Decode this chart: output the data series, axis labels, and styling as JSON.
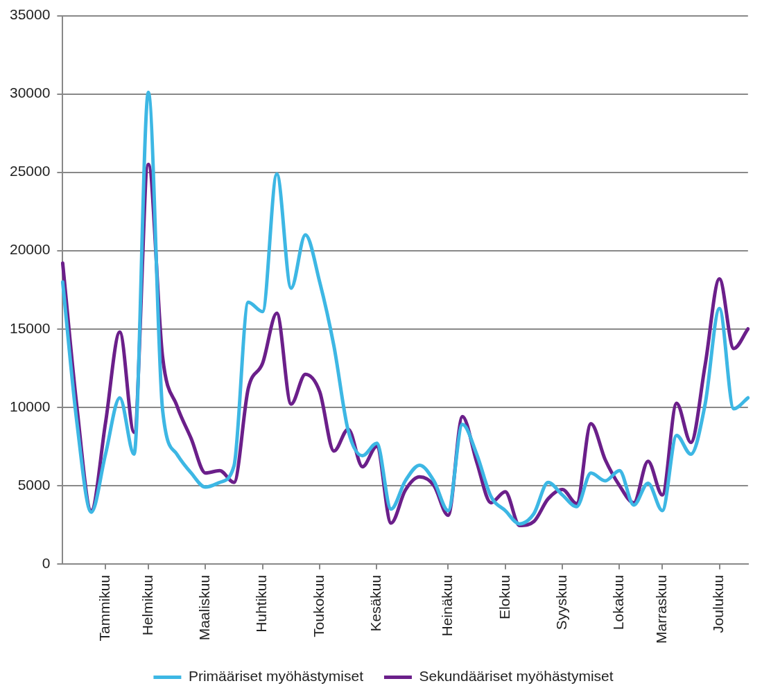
{
  "chart_data": {
    "type": "line",
    "ylim": [
      0,
      35000
    ],
    "yticks": [
      0,
      5000,
      10000,
      15000,
      20000,
      25000,
      30000,
      35000
    ],
    "categories": [
      null,
      null,
      null,
      "Tammikuu",
      null,
      null,
      "Helmikuu",
      null,
      null,
      null,
      "Maaliskuu",
      null,
      null,
      null,
      "Huhtikuu",
      null,
      null,
      null,
      "Toukokuu",
      null,
      null,
      null,
      "Kesäkuu",
      null,
      null,
      null,
      null,
      "Heinäkuu",
      null,
      null,
      null,
      "Elokuu",
      null,
      null,
      null,
      "Syyskuu",
      null,
      null,
      null,
      "Lokakuu",
      null,
      null,
      "Marraskuu",
      null,
      null,
      null,
      "Joulukuu",
      null,
      null
    ],
    "grid": "y",
    "legend": "bottom",
    "line_style": "solid",
    "series": [
      {
        "name": "Primääriset myöhästymiset",
        "color": "#3db7e4",
        "values": [
          18000,
          9000,
          3300,
          7000,
          10600,
          7000,
          30100,
          9800,
          7000,
          5800,
          4900,
          5200,
          6250,
          16700,
          16100,
          24900,
          17600,
          21000,
          18000,
          13900,
          8500,
          6900,
          7700,
          3500,
          5300,
          6300,
          5300,
          3400,
          8900,
          7000,
          4300,
          3400,
          2550,
          3200,
          5200,
          4400,
          3650,
          5800,
          5300,
          5950,
          3750,
          5150,
          3400,
          8200,
          7000,
          10200,
          16300,
          9900,
          10600
        ]
      },
      {
        "name": "Sekundääriset myöhästymiset",
        "color": "#6b1f8a",
        "values": [
          19200,
          10000,
          3400,
          9000,
          14800,
          8400,
          25500,
          13200,
          10100,
          8000,
          5800,
          5950,
          5200,
          11200,
          12800,
          16000,
          10200,
          12100,
          11000,
          7200,
          8600,
          6200,
          7500,
          2600,
          4700,
          5550,
          5000,
          3100,
          9400,
          6500,
          3900,
          4600,
          2450,
          2700,
          4150,
          4750,
          3850,
          8950,
          6650,
          5000,
          3900,
          6550,
          4400,
          10250,
          7750,
          12700,
          18200,
          13750,
          15000
        ]
      }
    ]
  }
}
